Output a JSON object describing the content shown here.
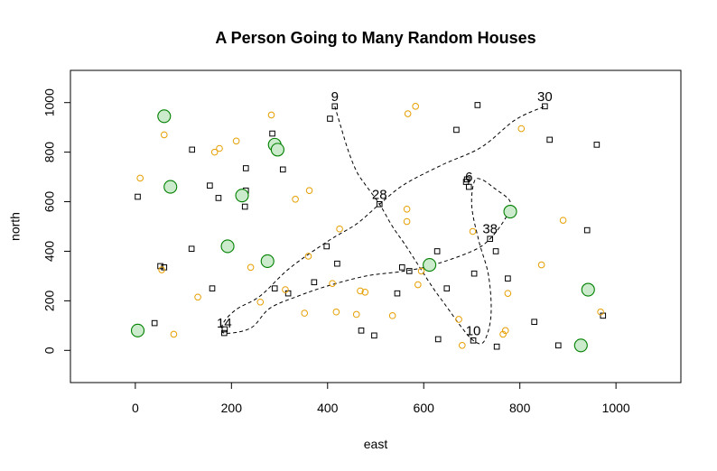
{
  "chart_data": {
    "type": "scatter",
    "title": "A Person Going to Many Random Houses",
    "xlabel": "east",
    "ylabel": "north",
    "xlim": [
      -135,
      1135
    ],
    "ylim": [
      -130,
      1130
    ],
    "xticks": [
      0,
      200,
      400,
      600,
      800,
      1000
    ],
    "yticks": [
      0,
      200,
      400,
      600,
      800,
      1000
    ],
    "grid": false,
    "colors": {
      "square": "#000000",
      "orange": "#E69F00",
      "green": "#008000",
      "green_fill": "#ccebcc",
      "path": "#000000"
    },
    "series": [
      {
        "marker": "square",
        "points": [
          [
            5,
            620
          ],
          [
            40,
            110
          ],
          [
            52,
            340
          ],
          [
            60,
            335
          ],
          [
            118,
            810
          ],
          [
            117,
            410
          ],
          [
            155,
            665
          ],
          [
            160,
            250
          ],
          [
            173,
            615
          ],
          [
            185,
            70
          ],
          [
            186,
            85
          ],
          [
            230,
            735
          ],
          [
            228,
            580
          ],
          [
            230,
            645
          ],
          [
            285,
            875
          ],
          [
            290,
            250
          ],
          [
            307,
            730
          ],
          [
            318,
            230
          ],
          [
            372,
            275
          ],
          [
            398,
            420
          ],
          [
            405,
            935
          ],
          [
            415,
            985
          ],
          [
            420,
            350
          ],
          [
            470,
            80
          ],
          [
            497,
            60
          ],
          [
            508,
            590
          ],
          [
            545,
            230
          ],
          [
            555,
            335
          ],
          [
            570,
            320
          ],
          [
            628,
            400
          ],
          [
            630,
            45
          ],
          [
            648,
            250
          ],
          [
            668,
            890
          ],
          [
            688,
            680
          ],
          [
            690,
            690
          ],
          [
            694,
            660
          ],
          [
            703,
            40
          ],
          [
            705,
            310
          ],
          [
            712,
            990
          ],
          [
            738,
            450
          ],
          [
            750,
            400
          ],
          [
            752,
            15
          ],
          [
            775,
            290
          ],
          [
            830,
            115
          ],
          [
            852,
            985
          ],
          [
            862,
            850
          ],
          [
            880,
            20
          ],
          [
            940,
            485
          ],
          [
            960,
            830
          ],
          [
            973,
            140
          ]
        ]
      },
      {
        "marker": "orange-circle",
        "points": [
          [
            10,
            695
          ],
          [
            55,
            325
          ],
          [
            60,
            870
          ],
          [
            80,
            65
          ],
          [
            130,
            215
          ],
          [
            165,
            800
          ],
          [
            175,
            815
          ],
          [
            210,
            845
          ],
          [
            240,
            335
          ],
          [
            260,
            195
          ],
          [
            283,
            950
          ],
          [
            312,
            245
          ],
          [
            333,
            610
          ],
          [
            352,
            150
          ],
          [
            360,
            380
          ],
          [
            362,
            645
          ],
          [
            410,
            270
          ],
          [
            418,
            155
          ],
          [
            425,
            490
          ],
          [
            460,
            145
          ],
          [
            468,
            240
          ],
          [
            478,
            235
          ],
          [
            535,
            140
          ],
          [
            565,
            570
          ],
          [
            565,
            520
          ],
          [
            567,
            955
          ],
          [
            583,
            985
          ],
          [
            588,
            265
          ],
          [
            595,
            320
          ],
          [
            673,
            125
          ],
          [
            680,
            20
          ],
          [
            702,
            480
          ],
          [
            765,
            65
          ],
          [
            770,
            80
          ],
          [
            775,
            230
          ],
          [
            803,
            895
          ],
          [
            845,
            345
          ],
          [
            890,
            525
          ],
          [
            968,
            155
          ]
        ]
      },
      {
        "marker": "green-circle",
        "points": [
          [
            5,
            80
          ],
          [
            60,
            945
          ],
          [
            73,
            660
          ],
          [
            192,
            420
          ],
          [
            222,
            625
          ],
          [
            275,
            360
          ],
          [
            290,
            830
          ],
          [
            296,
            810
          ],
          [
            612,
            345
          ],
          [
            780,
            560
          ],
          [
            927,
            20
          ],
          [
            942,
            245
          ]
        ]
      }
    ],
    "path": [
      [
        415,
        985
      ],
      [
        428,
        900
      ],
      [
        444,
        800
      ],
      [
        461,
        720
      ],
      [
        478,
        670
      ],
      [
        508,
        590
      ],
      [
        535,
        500
      ],
      [
        560,
        430
      ],
      [
        590,
        340
      ],
      [
        620,
        250
      ],
      [
        650,
        170
      ],
      [
        678,
        95
      ],
      [
        703,
        40
      ],
      [
        725,
        35
      ],
      [
        740,
        140
      ],
      [
        735,
        300
      ],
      [
        715,
        440
      ],
      [
        700,
        580
      ],
      [
        705,
        680
      ],
      [
        720,
        690
      ],
      [
        750,
        650
      ],
      [
        780,
        600
      ],
      [
        772,
        540
      ],
      [
        738,
        450
      ],
      [
        700,
        400
      ],
      [
        620,
        345
      ],
      [
        560,
        320
      ],
      [
        480,
        300
      ],
      [
        400,
        260
      ],
      [
        340,
        220
      ],
      [
        280,
        170
      ],
      [
        240,
        90
      ],
      [
        185,
        70
      ],
      [
        183,
        110
      ],
      [
        210,
        165
      ],
      [
        260,
        220
      ],
      [
        320,
        330
      ],
      [
        400,
        440
      ],
      [
        460,
        510
      ],
      [
        508,
        590
      ],
      [
        560,
        670
      ],
      [
        640,
        750
      ],
      [
        720,
        820
      ],
      [
        790,
        930
      ],
      [
        852,
        985
      ]
    ],
    "labels": [
      {
        "text": "9",
        "x": 415,
        "y": 985
      },
      {
        "text": "30",
        "x": 852,
        "y": 985
      },
      {
        "text": "6",
        "x": 694,
        "y": 660
      },
      {
        "text": "28",
        "x": 508,
        "y": 590
      },
      {
        "text": "38",
        "x": 738,
        "y": 450
      },
      {
        "text": "14",
        "x": 185,
        "y": 70
      },
      {
        "text": "10",
        "x": 703,
        "y": 40
      }
    ]
  }
}
